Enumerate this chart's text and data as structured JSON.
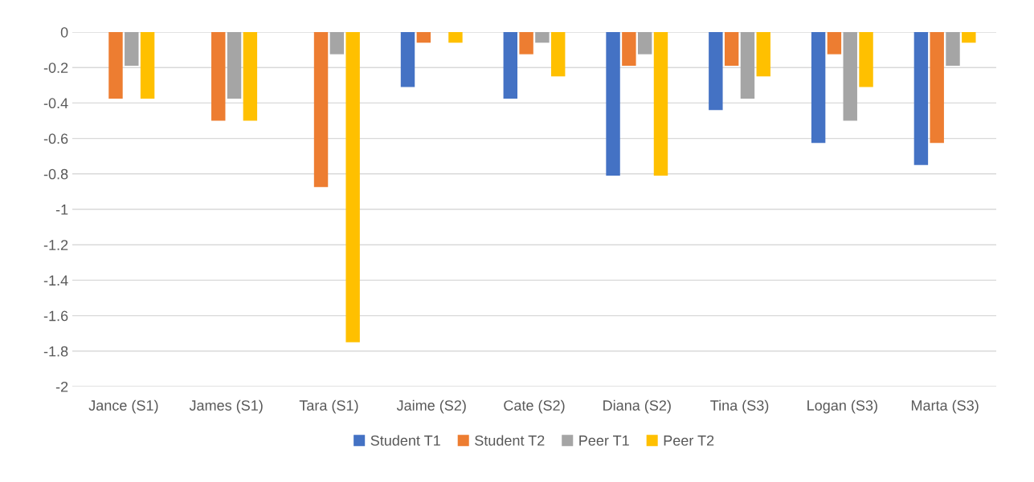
{
  "chart_data": {
    "type": "bar",
    "categories": [
      "Jance (S1)",
      "James (S1)",
      "Tara (S1)",
      "Jaime (S2)",
      "Cate (S2)",
      "Diana (S2)",
      "Tina (S3)",
      "Logan (S3)",
      "Marta (S3)"
    ],
    "series": [
      {
        "name": "Student T1",
        "color": "#4472c4",
        "values": [
          0,
          0,
          0,
          -0.31,
          -0.375,
          -0.81,
          -0.44,
          -0.625,
          -0.75
        ]
      },
      {
        "name": "Student T2",
        "color": "#ed7d31",
        "values": [
          -0.375,
          -0.5,
          -0.875,
          -0.06,
          -0.125,
          -0.19,
          -0.19,
          -0.125,
          -0.625
        ]
      },
      {
        "name": "Peer T1",
        "color": "#a5a5a5",
        "values": [
          -0.19,
          -0.375,
          -0.125,
          0,
          -0.06,
          -0.125,
          -0.375,
          -0.5,
          -0.19
        ]
      },
      {
        "name": "Peer T2",
        "color": "#ffc000",
        "values": [
          -0.375,
          -0.5,
          -1.75,
          -0.06,
          -0.25,
          -0.81,
          -0.25,
          -0.31,
          -0.06
        ]
      }
    ],
    "ylim": [
      -2,
      0
    ],
    "yticks": [
      0,
      -0.2,
      -0.4,
      -0.6,
      -0.8,
      -1,
      -1.2,
      -1.4,
      -1.6,
      -1.8,
      -2
    ],
    "grid": "y",
    "legend": "bottom"
  }
}
